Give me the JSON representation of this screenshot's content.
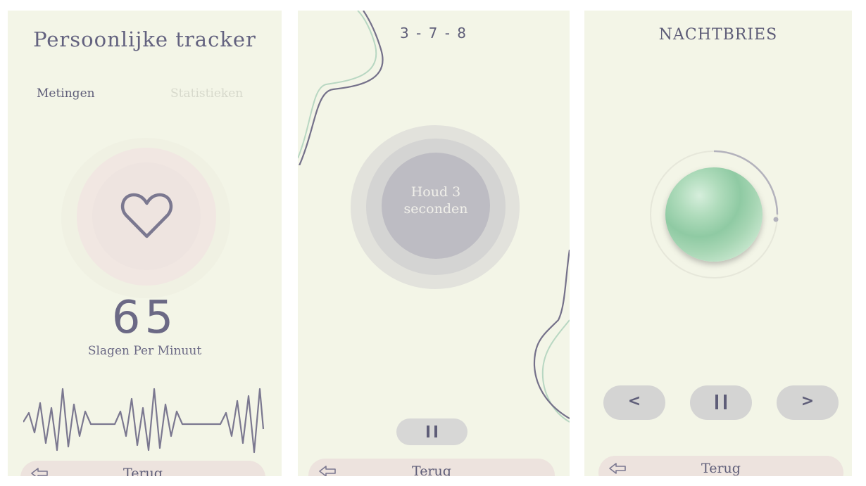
{
  "tracker": {
    "title": "Persoonlijke tracker",
    "tabs": [
      {
        "label": "Metingen",
        "active": true
      },
      {
        "label": "Statistieken",
        "active": false
      }
    ],
    "bpm": "65",
    "bpm_label": "Slagen Per Minuut",
    "back_label": "Terug"
  },
  "breathing": {
    "pattern": "3 - 7 - 8",
    "instruction": "Houd 3 seconden",
    "pause_icon": "pause-icon",
    "back_label": "Terug"
  },
  "player": {
    "title": "NACHTBRIES",
    "prev_label": "<",
    "next_label": ">",
    "pause_icon": "pause-icon",
    "back_label": "Terug",
    "progress": 0.25
  },
  "colors": {
    "background": "#f3f5e7",
    "accent_text": "#63627f",
    "button_gray": "#d4d4d3",
    "back_button": "#ede3de"
  }
}
